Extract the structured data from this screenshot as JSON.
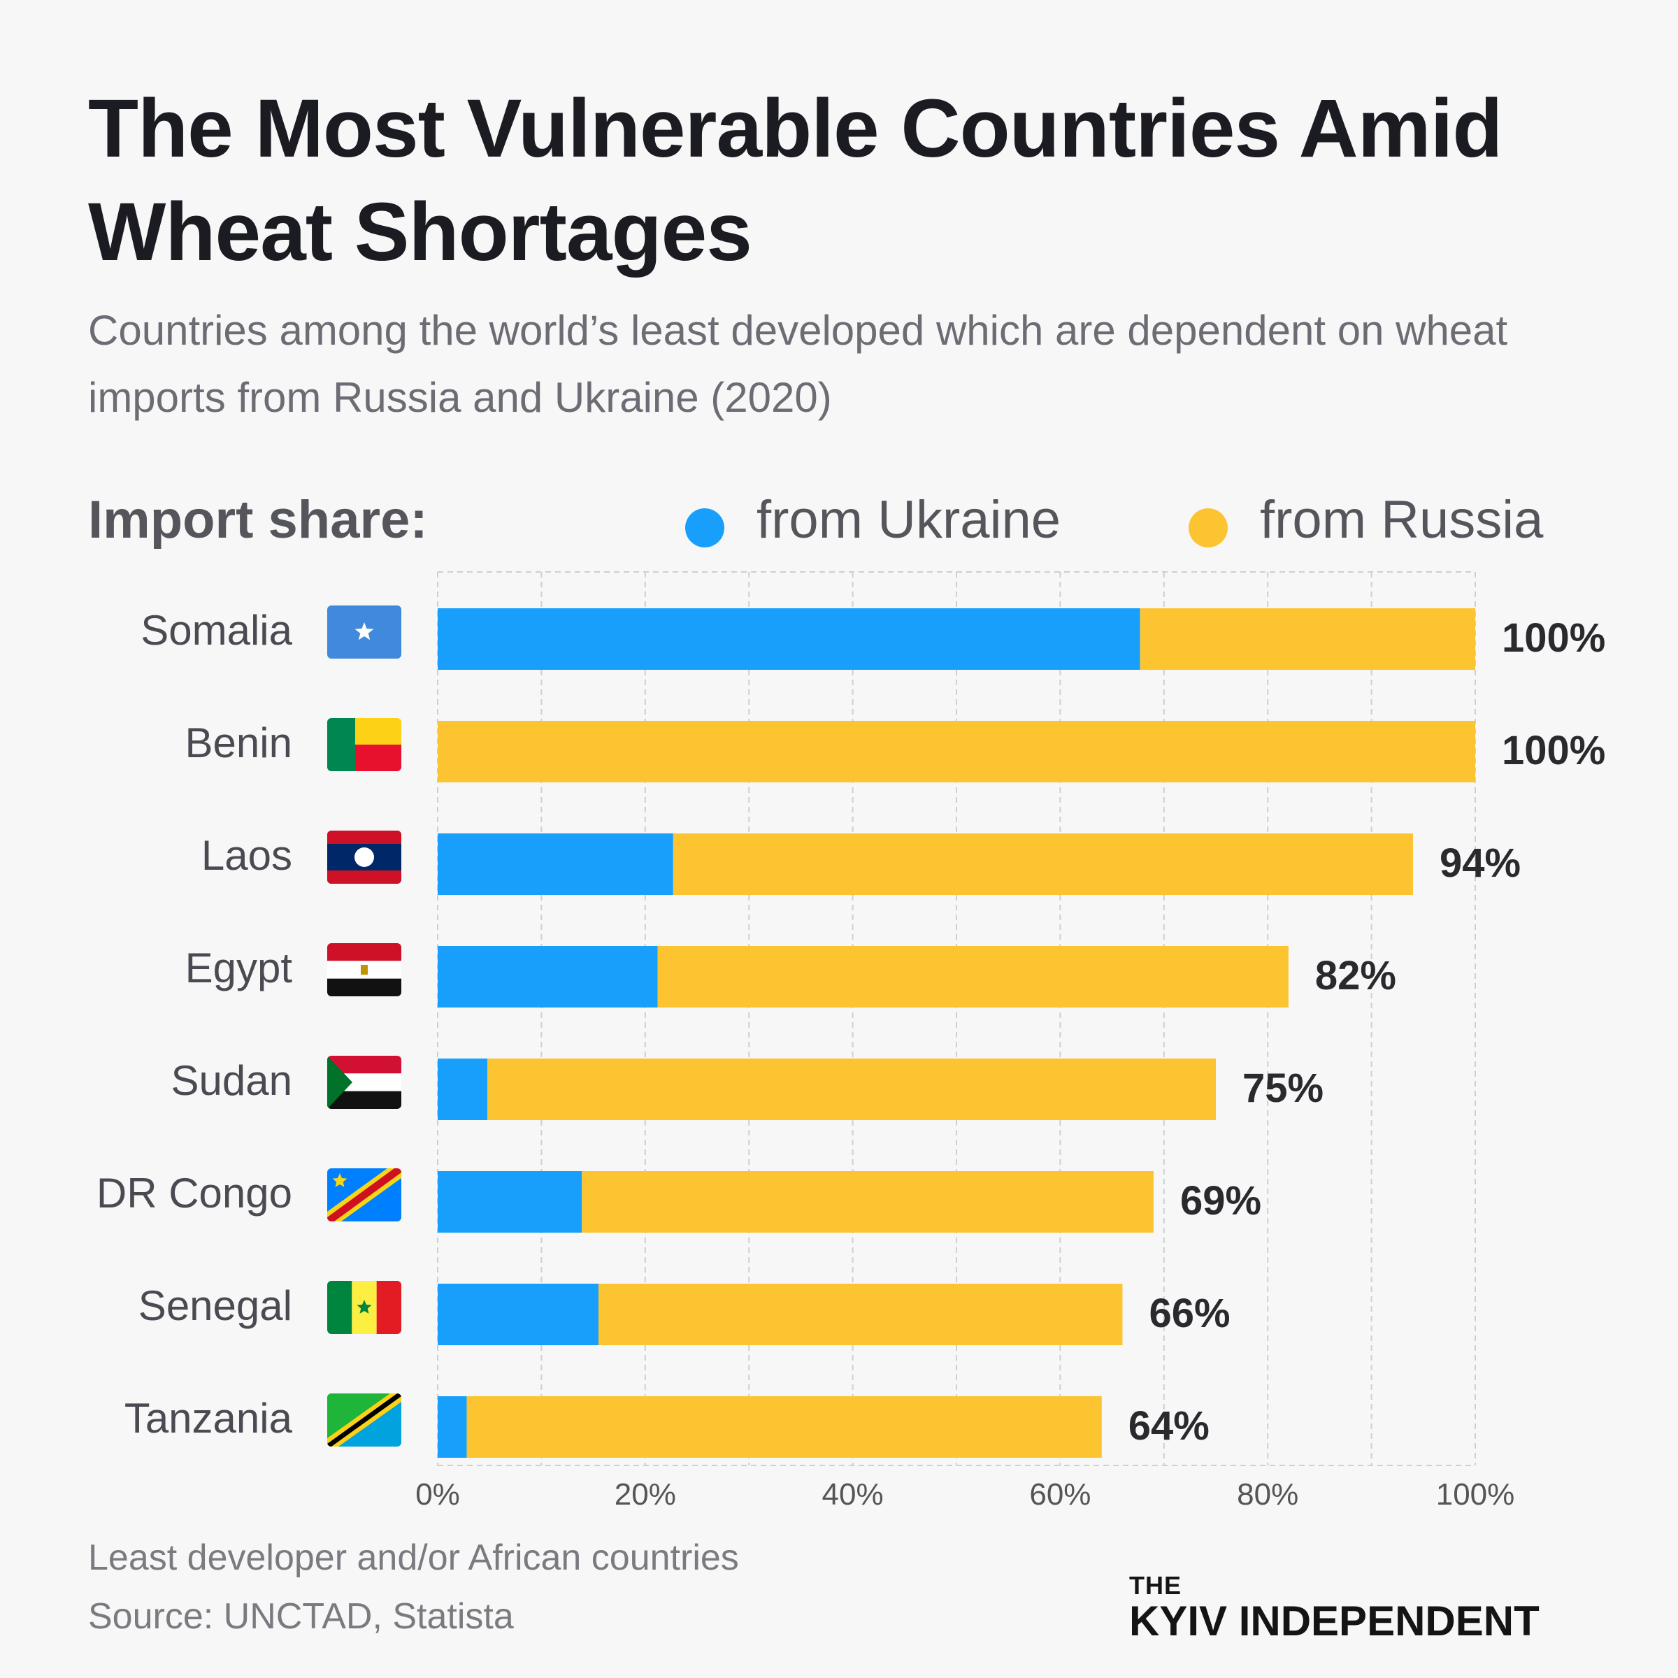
{
  "title": "The Most Vulnerable Countries Amid Wheat Shortages",
  "subtitle": "Countries among the world’s least developed which are dependent on wheat imports from Russia and Ukraine (2020)",
  "legend": {
    "title": "Import share:",
    "items": [
      {
        "label": "from Ukraine",
        "color": "#189ffb"
      },
      {
        "label": "from Russia",
        "color": "#fdc431"
      }
    ]
  },
  "chart_data": {
    "type": "bar",
    "orientation": "horizontal",
    "stacked": true,
    "categories": [
      "Somalia",
      "Benin",
      "Laos",
      "Egypt",
      "Sudan",
      "DR Congo",
      "Senegal",
      "Tanzania"
    ],
    "flags": [
      "somalia-flag-icon",
      "benin-flag-icon",
      "laos-flag-icon",
      "egypt-flag-icon",
      "sudan-flag-icon",
      "dr-congo-flag-icon",
      "senegal-flag-icon",
      "tanzania-flag-icon"
    ],
    "series": [
      {
        "name": "from Ukraine",
        "color": "#189ffb",
        "values": [
          67.7,
          0,
          22.7,
          21.2,
          4.8,
          13.9,
          15.5,
          2.8
        ]
      },
      {
        "name": "from Russia",
        "color": "#fdc431",
        "values": [
          32.3,
          100,
          71.3,
          60.8,
          70.2,
          55.1,
          50.5,
          61.2
        ]
      }
    ],
    "totals_labels": [
      "100%",
      "100%",
      "94%",
      "82%",
      "75%",
      "69%",
      "66%",
      "64%"
    ],
    "x_ticks": [
      "0%",
      "20%",
      "40%",
      "60%",
      "80%",
      "100%"
    ],
    "xlim": [
      0,
      100
    ],
    "grid": "dashed vertical every 10%",
    "legend_position": "top"
  },
  "footer": {
    "note": "Least developer and/or African countries",
    "source": "Source: UNCTAD, Statista"
  },
  "brand": {
    "the": "THE",
    "name": "KYIV INDEPENDENT"
  }
}
